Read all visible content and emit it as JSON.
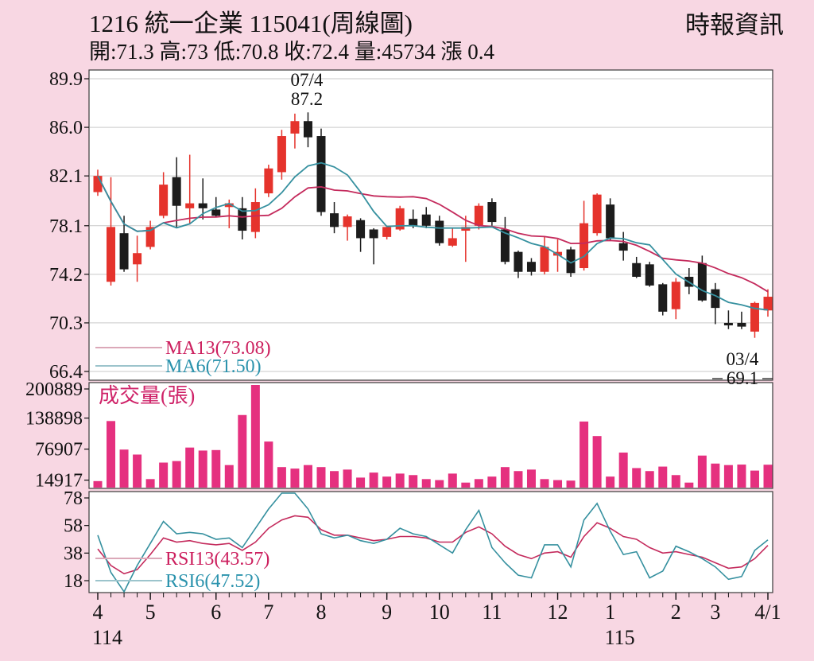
{
  "header": {
    "title": "1216 統一企業 115041(周線圖)",
    "vendor": "時報資訊",
    "quote_line": "開:71.3 高:73 低:70.8 收:72.4 量:45734 漲 0.4"
  },
  "colors": {
    "background": "#f8d7e3",
    "panel": "#ffffff",
    "border": "#3a3a3a",
    "grid": "#c9c9c9",
    "text": "#111111",
    "candle_up": "#e5332c",
    "candle_down": "#1c1c1c",
    "volume_bar": "#e5307f",
    "volume_label": "#cf2268",
    "ma13_line": "#c42a5c",
    "ma6_line": "#35909f",
    "ma13_text": "#cc1f5e",
    "ma6_text": "#2b93ad",
    "swatch_pink": "#dba8b8",
    "swatch_teal": "#9cc4cc"
  },
  "main_chart": {
    "y_ticks": [
      89.9,
      86.0,
      82.1,
      78.1,
      74.2,
      70.3,
      66.4
    ],
    "legend": {
      "ma13": "MA13(73.08)",
      "ma6": "MA6(71.50)"
    },
    "annotations": {
      "high_date": "07/4",
      "high_value": "87.2",
      "low_date": "03/4",
      "low_value": "69.1"
    }
  },
  "volume_panel": {
    "label": "成交量(張)",
    "y_ticks": [
      200889,
      138898,
      76907,
      14917
    ]
  },
  "rsi_panel": {
    "y_ticks": [
      78,
      58,
      38,
      18
    ],
    "legend": {
      "rsi13": "RSI13(43.57)",
      "rsi6": "RSI6(47.52)"
    }
  },
  "x_axis": {
    "months": [
      {
        "i": 0,
        "label": "4"
      },
      {
        "i": 4,
        "label": "5"
      },
      {
        "i": 9,
        "label": "6"
      },
      {
        "i": 13,
        "label": "7"
      },
      {
        "i": 17,
        "label": "8"
      },
      {
        "i": 22,
        "label": "9"
      },
      {
        "i": 26,
        "label": "10"
      },
      {
        "i": 30,
        "label": "11"
      },
      {
        "i": 35,
        "label": "12"
      },
      {
        "i": 39,
        "label": "1"
      },
      {
        "i": 44,
        "label": "2"
      },
      {
        "i": 47,
        "label": "3"
      },
      {
        "i": 51,
        "label": "4/1"
      }
    ],
    "years": [
      {
        "i": 0,
        "label": "114"
      },
      {
        "i": 39,
        "label": "115"
      }
    ]
  },
  "chart_data": {
    "type": "candlestick",
    "title": "1216 統一企業 weekly chart (周線圖), ROC year 114/4 to 115/4",
    "price_axis_range": [
      66.4,
      89.9
    ],
    "volume_axis_ticks": [
      14917,
      76907,
      138898,
      200889
    ],
    "rsi_axis_range": [
      0,
      82
    ],
    "ma_windows": [
      13,
      6
    ],
    "ma_final": {
      "ma13": 73.08,
      "ma6": 71.5
    },
    "rsi_final": {
      "rsi13": 43.57,
      "rsi6": 47.52
    },
    "last_week": {
      "open": 71.3,
      "high": 73,
      "low": 70.8,
      "close": 72.4,
      "volume": 45734,
      "change": 0.4
    },
    "annotated_high": {
      "date": "07/4",
      "value": 87.2
    },
    "annotated_low": {
      "date": "03/4",
      "value": 69.1
    },
    "candles_ohlc": [
      [
        80.8,
        82.6,
        80.5,
        82.1
      ],
      [
        73.6,
        82.0,
        73.3,
        78.0
      ],
      [
        77.5,
        78.9,
        74.4,
        74.6
      ],
      [
        75.0,
        77.3,
        73.6,
        75.9
      ],
      [
        76.4,
        78.5,
        76.2,
        78.0
      ],
      [
        78.9,
        82.4,
        78.7,
        81.4
      ],
      [
        82.0,
        83.6,
        77.9,
        79.7
      ],
      [
        79.5,
        83.8,
        78.2,
        79.9
      ],
      [
        79.9,
        81.9,
        78.6,
        79.5
      ],
      [
        79.4,
        80.4,
        78.8,
        78.9
      ],
      [
        79.6,
        80.2,
        77.9,
        79.9
      ],
      [
        79.5,
        80.4,
        77.0,
        77.7
      ],
      [
        77.6,
        81.1,
        77.1,
        80.0
      ],
      [
        80.7,
        83.0,
        80.4,
        82.7
      ],
      [
        82.4,
        85.8,
        81.8,
        85.3
      ],
      [
        85.5,
        87.1,
        84.3,
        86.5
      ],
      [
        86.5,
        87.2,
        84.4,
        85.2
      ],
      [
        85.3,
        85.9,
        78.9,
        79.2
      ],
      [
        79.1,
        80.0,
        77.5,
        78.0
      ],
      [
        78.0,
        79.0,
        76.9,
        78.85
      ],
      [
        78.55,
        78.7,
        76.0,
        77.1
      ],
      [
        77.8,
        77.9,
        75.0,
        77.1
      ],
      [
        77.2,
        78.1,
        77.0,
        78.0
      ],
      [
        77.8,
        79.7,
        77.7,
        79.5
      ],
      [
        78.65,
        79.4,
        77.9,
        78.1
      ],
      [
        79.0,
        79.6,
        77.9,
        78.1
      ],
      [
        78.5,
        78.9,
        76.5,
        76.7
      ],
      [
        76.5,
        77.9,
        76.4,
        77.1
      ],
      [
        77.7,
        78.9,
        75.2,
        78.0
      ],
      [
        78.1,
        79.9,
        77.8,
        79.7
      ],
      [
        80.0,
        80.3,
        78.1,
        78.4
      ],
      [
        77.8,
        78.8,
        75.0,
        75.2
      ],
      [
        76.0,
        76.1,
        73.9,
        74.4
      ],
      [
        75.2,
        75.5,
        74.1,
        74.4
      ],
      [
        74.4,
        77.2,
        74.2,
        76.4
      ],
      [
        75.7,
        77.0,
        74.4,
        76.0
      ],
      [
        76.2,
        76.4,
        74.0,
        74.3
      ],
      [
        74.7,
        80.1,
        74.5,
        78.3
      ],
      [
        77.5,
        80.7,
        77.3,
        80.6
      ],
      [
        79.8,
        80.3,
        76.9,
        77.1
      ],
      [
        76.7,
        77.6,
        75.3,
        76.1
      ],
      [
        75.1,
        75.6,
        73.9,
        74.0
      ],
      [
        75.0,
        75.2,
        73.2,
        73.3
      ],
      [
        73.4,
        73.5,
        70.9,
        71.2
      ],
      [
        71.4,
        73.9,
        70.6,
        73.6
      ],
      [
        74.0,
        74.7,
        72.6,
        73.2
      ],
      [
        75.1,
        75.7,
        72.0,
        72.1
      ],
      [
        73.0,
        73.5,
        70.2,
        71.5
      ],
      [
        70.3,
        71.3,
        69.8,
        70.1
      ],
      [
        70.3,
        71.2,
        69.8,
        70.0
      ],
      [
        69.6,
        72.0,
        69.1,
        71.9
      ],
      [
        71.3,
        73.0,
        70.8,
        72.4
      ]
    ],
    "volume": [
      13000,
      133000,
      76000,
      66000,
      17000,
      50000,
      53000,
      80000,
      74000,
      75000,
      45000,
      145000,
      205000,
      92000,
      41000,
      38000,
      45000,
      41000,
      33000,
      36000,
      20000,
      30000,
      22000,
      28000,
      25000,
      17000,
      15000,
      28000,
      10000,
      17000,
      22000,
      41000,
      33000,
      36000,
      17000,
      15000,
      14000,
      132000,
      103000,
      22000,
      70000,
      39000,
      33000,
      42000,
      25000,
      10000,
      64000,
      48000,
      45000,
      46000,
      34000,
      45734
    ],
    "rsi6": [
      51,
      24,
      10,
      29,
      45,
      61,
      52,
      53,
      52,
      48,
      49,
      42,
      56,
      70,
      82,
      83,
      70,
      52,
      49,
      51,
      47,
      45,
      48,
      56,
      52,
      50,
      44,
      38,
      55,
      69,
      42,
      31,
      22,
      20,
      44,
      44,
      28,
      62,
      74,
      54,
      37,
      39,
      20,
      25,
      43,
      39,
      34,
      28,
      19,
      21,
      40,
      47.52
    ],
    "rsi13": [
      41,
      29,
      23,
      26,
      37,
      49,
      46,
      47,
      45,
      44,
      45,
      40,
      46,
      56,
      62,
      65,
      64,
      55,
      51,
      51,
      49,
      47,
      48,
      50,
      50,
      49,
      46,
      46,
      53,
      57,
      52,
      43,
      37,
      34,
      38,
      39,
      35,
      50,
      60,
      56,
      50,
      48,
      42,
      38,
      39,
      37,
      35,
      31,
      27,
      28,
      34,
      43.57
    ]
  }
}
